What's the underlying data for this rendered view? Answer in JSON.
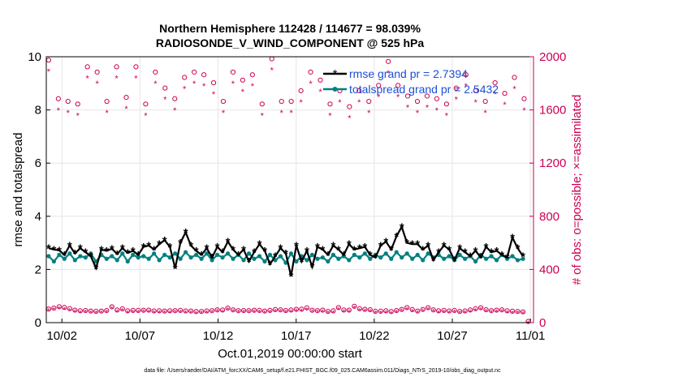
{
  "chart_data": {
    "type": "line",
    "title": "Northern Hemisphere 112428 / 114677 = 98.039%",
    "subtitle": "RADIOSONDE_V_WIND_COMPONENT @ 525 hPa",
    "xlabel": "Oct.01,2019 00:00:00 start",
    "ylabel": "rmse and totalspread",
    "y2label": "# of obs: o=possible; ×=assimilated",
    "xlim": [
      1.0,
      32.2
    ],
    "ylim": [
      0,
      10
    ],
    "y2lim": [
      0,
      2000
    ],
    "xticks": [
      {
        "x": 2,
        "label": "10/02"
      },
      {
        "x": 7,
        "label": "10/07"
      },
      {
        "x": 12,
        "label": "10/12"
      },
      {
        "x": 17,
        "label": "10/17"
      },
      {
        "x": 22,
        "label": "10/22"
      },
      {
        "x": 27,
        "label": "10/27"
      },
      {
        "x": 32,
        "label": "11/01"
      }
    ],
    "yticks": [
      "0",
      "2",
      "4",
      "6",
      "8",
      "10"
    ],
    "y2ticks": [
      "0",
      "400",
      "800",
      "1200",
      "1600",
      "2000"
    ],
    "grid": true,
    "legend_position": "top-right",
    "series": [
      {
        "name": "rmse",
        "legend": "rmse grand pr = 2.7394",
        "color": "#000000",
        "axis": "left",
        "values": [
          2.8,
          2.75,
          2.72,
          2.55,
          2.9,
          2.6,
          2.8,
          2.65,
          2.5,
          2.05,
          2.75,
          2.7,
          2.78,
          2.58,
          2.8,
          2.62,
          2.7,
          2.55,
          2.85,
          2.9,
          2.75,
          2.95,
          3.1,
          2.85,
          2.05,
          3.0,
          3.4,
          2.9,
          2.7,
          2.55,
          2.8,
          2.45,
          2.85,
          2.65,
          3.05,
          2.75,
          2.55,
          2.75,
          2.3,
          2.65,
          2.95,
          2.7,
          2.2,
          2.5,
          2.8,
          2.6,
          1.75,
          2.9,
          2.3,
          2.7,
          2.1,
          2.85,
          2.75,
          2.55,
          2.9,
          2.75,
          2.55,
          2.95,
          2.75,
          2.8,
          2.85,
          2.55,
          2.45,
          2.9,
          3.05,
          2.75,
          3.25,
          3.6,
          3.0,
          2.95,
          2.95,
          2.75,
          2.9,
          2.35,
          2.65,
          2.9,
          2.75,
          2.35,
          2.8,
          2.65,
          2.5,
          2.7,
          2.45,
          2.85,
          2.65,
          2.7,
          2.55,
          2.45,
          3.2,
          2.8,
          2.5
        ]
      },
      {
        "name": "totalspread",
        "legend": "totalspread grand pr = 2.5432",
        "color": "#008080",
        "axis": "left",
        "values": [
          2.5,
          2.3,
          2.55,
          2.4,
          2.6,
          2.35,
          2.5,
          2.45,
          2.6,
          2.3,
          2.55,
          2.4,
          2.5,
          2.35,
          2.6,
          2.3,
          2.55,
          2.45,
          2.5,
          2.4,
          2.6,
          2.35,
          2.55,
          2.45,
          2.6,
          2.4,
          2.65,
          2.45,
          2.55,
          2.4,
          2.6,
          2.35,
          2.55,
          2.45,
          2.6,
          2.4,
          2.55,
          2.35,
          2.6,
          2.4,
          2.5,
          2.3,
          2.55,
          2.35,
          2.5,
          2.25,
          2.6,
          2.3,
          2.5,
          2.35,
          2.55,
          2.4,
          2.45,
          2.3,
          2.55,
          2.4,
          2.5,
          2.35,
          2.55,
          2.45,
          2.6,
          2.4,
          2.55,
          2.45,
          2.6,
          2.4,
          2.65,
          2.45,
          2.6,
          2.4,
          2.55,
          2.35,
          2.6,
          2.45,
          2.55,
          2.4,
          2.5,
          2.35,
          2.55,
          2.4,
          2.5,
          2.3,
          2.55,
          2.4,
          2.5,
          2.35,
          2.55,
          2.4,
          2.5,
          2.35,
          2.4
        ]
      },
      {
        "name": "obs_possible",
        "color": "#cc0055",
        "axis": "right",
        "marker": "o",
        "values": [
          93,
          100,
          111,
          105,
          96,
          85,
          80,
          82,
          78,
          76,
          78,
          82,
          110,
          86,
          95,
          80,
          83,
          83,
          84,
          85,
          79,
          80,
          78,
          80,
          81,
          83,
          79,
          78,
          74,
          75,
          79,
          81,
          87,
          86,
          100,
          87,
          81,
          82,
          81,
          84,
          83,
          78,
          83,
          89,
          87,
          82,
          86,
          91,
          92,
          102,
          84,
          81,
          85,
          75,
          80,
          104,
          86,
          85,
          114,
          96,
          91,
          88,
          76,
          77,
          80,
          74,
          82,
          90,
          104,
          89,
          78,
          90,
          103,
          87,
          80,
          83,
          79,
          83,
          75,
          79,
          86,
          96,
          103,
          88,
          81,
          85,
          87,
          80,
          77,
          75,
          72,
          0
        ],
        "peaks": [
          1950,
          1660,
          1640,
          1620,
          1900,
          1860,
          1640,
          1900,
          1670,
          1900,
          1620,
          1860,
          1740,
          1660,
          1820,
          1860,
          1840,
          1780,
          1640,
          1860,
          1800,
          1840,
          1620,
          1960,
          1640,
          1640,
          1720,
          1860,
          1800,
          1620,
          1720,
          1600,
          1720,
          1640,
          1760,
          1940,
          1760,
          1680,
          1640,
          1680,
          1660,
          1620,
          1740,
          1840,
          1720,
          1640,
          1780,
          1700,
          1820,
          1660
        ]
      }
    ],
    "footnote": "data file: /Users/raeder/DAI/ATM_forcXX/CAM6_setup/f.e21.FHIST_BGC.f09_025.CAM6assim.011/Diags_NTrS_2019-10/obs_diag_output.nc"
  }
}
